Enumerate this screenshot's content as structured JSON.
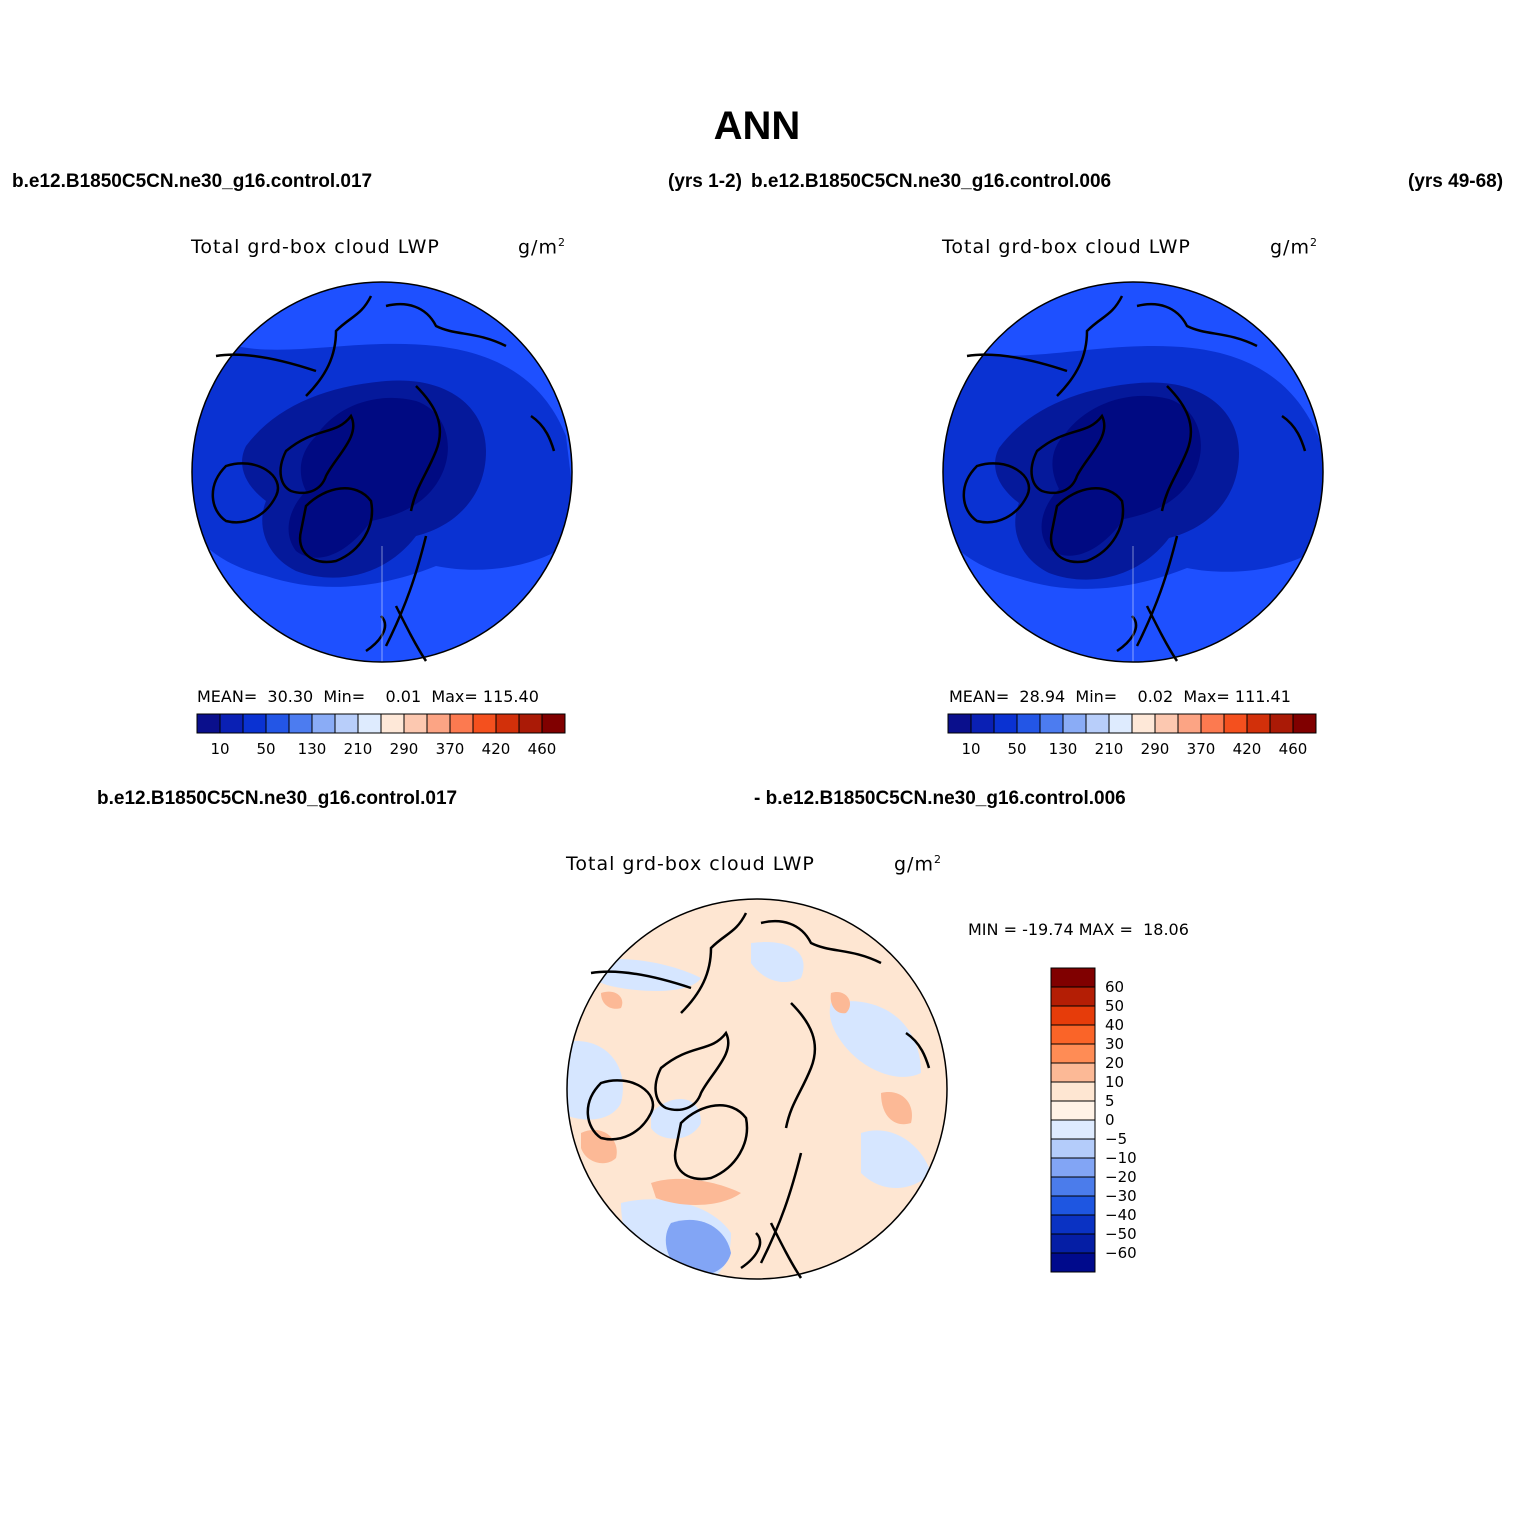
{
  "title": "ANN",
  "top_row": {
    "left_case": "b.e12.B1850C5CN.ne30_g16.control.017",
    "left_years": "(yrs 1-2)",
    "right_case": "b.e12.B1850C5CN.ne30_g16.control.006",
    "right_years": "(yrs 49-68)"
  },
  "bottom_row": {
    "left_case": "b.e12.B1850C5CN.ne30_g16.control.017",
    "right_case": "- b.e12.B1850C5CN.ne30_g16.control.006"
  },
  "panels": [
    {
      "variable": "Total grd-box cloud LWP",
      "units_base": "g/m",
      "units_exp": "2",
      "stats": "MEAN=  30.30  Min=    0.01  Max= 115.40"
    },
    {
      "variable": "Total grd-box cloud LWP",
      "units_base": "g/m",
      "units_exp": "2",
      "stats": "MEAN=  28.94  Min=    0.02  Max= 111.41"
    },
    {
      "variable": "Total grd-box cloud LWP",
      "units_base": "g/m",
      "units_exp": "2",
      "stats": "MIN = -19.74 MAX =  18.06"
    }
  ],
  "colorbar_abs": {
    "colors": [
      "#0a0f8c",
      "#0a20b4",
      "#0a32d2",
      "#2356e6",
      "#4c7cf0",
      "#8aacf6",
      "#b8cefa",
      "#deebfe",
      "#fee8d8",
      "#fcc8b0",
      "#fca484",
      "#fc7a50",
      "#f4501e",
      "#d2300a",
      "#aa1a06",
      "#800000"
    ],
    "labels": [
      "10",
      "50",
      "130",
      "210",
      "290",
      "370",
      "420",
      "460"
    ]
  },
  "colorbar_diff": {
    "colors": [
      "#800000",
      "#b41e05",
      "#e63c0a",
      "#fa6428",
      "#ff8c55",
      "#fcb996",
      "#fee6d2",
      "#fff2e6",
      "#deebff",
      "#b4ccfa",
      "#82a5f5",
      "#4b7ceb",
      "#1e56e1",
      "#0a32c3",
      "#051ea5",
      "#000a8c"
    ],
    "labels": [
      "60",
      "50",
      "40",
      "30",
      "20",
      "10",
      "5",
      "0",
      "−5",
      "−10",
      "−20",
      "−30",
      "−40",
      "−50",
      "−60"
    ]
  },
  "map_colors": {
    "abs_outer": "#1e50ff",
    "abs_mid": "#0a32d2",
    "abs_inner": "#05199b",
    "abs_core": "#000a82",
    "diff_base": "#fee6d2",
    "diff_pos": "#fcb996",
    "diff_neg": "#d6e6ff",
    "diff_neg2": "#82a5f5",
    "coast": "#000000"
  }
}
